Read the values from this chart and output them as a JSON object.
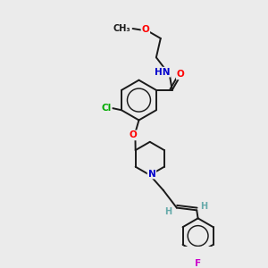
{
  "bg_color": "#ebebeb",
  "bond_color": "#1a1a1a",
  "atom_colors": {
    "O": "#ff0000",
    "N": "#0000cc",
    "Cl": "#00aa00",
    "F": "#cc00cc",
    "H": "#66aaaa",
    "C": "#1a1a1a"
  },
  "font_size": 7.5,
  "line_width": 1.4
}
